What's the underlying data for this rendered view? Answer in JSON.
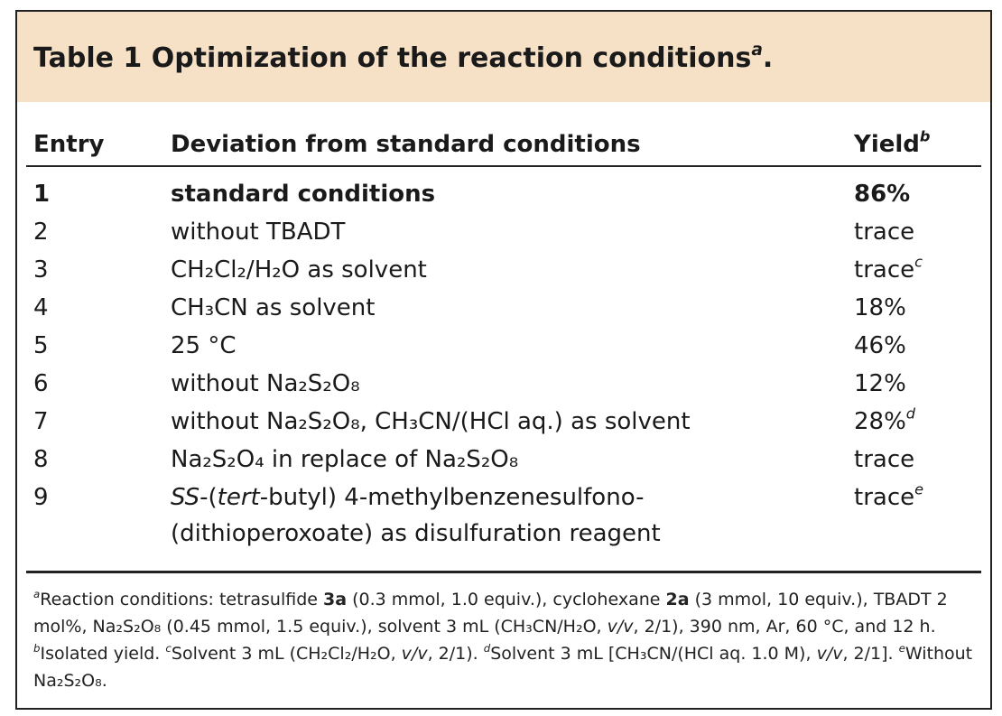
{
  "table": {
    "title": "Table 1 Optimization of the reaction conditions",
    "title_note": "a",
    "columns": [
      "Entry",
      "Deviation from standard conditions",
      "Yield"
    ],
    "yield_note": "b",
    "rows": [
      {
        "entry": 1,
        "deviation": "standard conditions",
        "yield": "86%"
      },
      {
        "entry": 2,
        "deviation": "without TBADT",
        "yield": "trace"
      },
      {
        "entry": 3,
        "deviation": "CH₂Cl₂/H₂O as solvent",
        "yield": "trace",
        "note": "c"
      },
      {
        "entry": 4,
        "deviation": "CH₃CN as solvent",
        "yield": "18%"
      },
      {
        "entry": 5,
        "deviation": "25 °C",
        "yield": "46%"
      },
      {
        "entry": 6,
        "deviation": "without Na₂S₂O₈",
        "yield": "12%"
      },
      {
        "entry": 7,
        "deviation": "without Na₂S₂O₈, CH₃CN/(HCl aq.) as solvent",
        "yield": "28%",
        "note": "d"
      },
      {
        "entry": 8,
        "deviation": "Na₂S₂O₄ in replace of Na₂S₂O₈",
        "yield": "trace"
      },
      {
        "entry": 9,
        "deviation": [
          "SS",
          "-(",
          "tert",
          "-butyl) 4-methylbenzenesulfono-",
          "(dithioperoxoate) as disulfuration reagent"
        ],
        "yield": "trace",
        "note": "e"
      }
    ]
  },
  "footnotes": [
    {
      "marker": "a",
      "parts": [
        "Reaction conditions: tetrasulfide ",
        "3a",
        " (0.3 mmol, 1.0 equiv.), cyclohexane ",
        "2a",
        " (3 mmol, 10 equiv.), TBADT 2 mol%, Na₂S₂O₈ (0.45 mmol, 1.5 equiv.), solvent 3 mL (CH₃CN/H₂O, ",
        "v/v",
        ", 2/1), 390 nm, Ar, 60 °C, and 12 h."
      ]
    },
    {
      "marker": "b",
      "parts": [
        "Isolated yield."
      ]
    },
    {
      "marker": "c",
      "parts": [
        "Solvent 3 mL (CH₂Cl₂/H₂O, ",
        "v/v",
        ", 2/1)."
      ]
    },
    {
      "marker": "d",
      "parts": [
        "Solvent 3 mL [CH₃CN/(HCl aq. 1.0 M), ",
        "v/v",
        ", 2/1]."
      ]
    },
    {
      "marker": "e",
      "parts": [
        "Without Na₂S₂O₈."
      ]
    }
  ]
}
